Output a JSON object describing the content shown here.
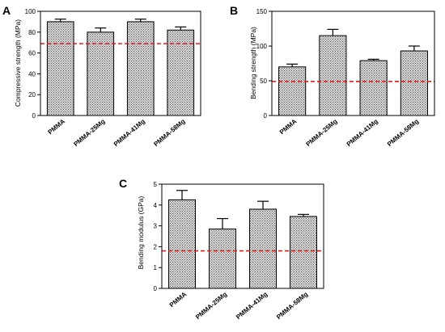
{
  "figure": {
    "fill_color": "#d8d8d8",
    "hatch_color": "#555555",
    "reference_line_color": "#e21b1b"
  },
  "chart_data": [
    {
      "panel": "A",
      "type": "bar",
      "categories": [
        "PMMA",
        "PMMA-25Mg",
        "PMMA-41Mg",
        "PMMA-58Mg"
      ],
      "values": [
        90,
        80,
        90,
        82
      ],
      "errors": [
        2.5,
        4,
        2.5,
        3
      ],
      "reference_line": 69,
      "ylabel": "Compressive strength (MPa)",
      "xlabel": "",
      "ylim": [
        0,
        100
      ],
      "yticks": [
        "0",
        "20",
        "40",
        "60",
        "80",
        "100"
      ]
    },
    {
      "panel": "B",
      "type": "bar",
      "categories": [
        "PMMA",
        "PMMA-25Mg",
        "PMMA-41Mg",
        "PMMA-58Mg"
      ],
      "values": [
        70,
        115,
        79,
        93
      ],
      "errors": [
        4,
        9,
        2,
        7
      ],
      "reference_line": 49,
      "ylabel": "Bending strength (MPa)",
      "xlabel": "",
      "ylim": [
        0,
        150
      ],
      "yticks": [
        "0",
        "50",
        "100",
        "150"
      ]
    },
    {
      "panel": "C",
      "type": "bar",
      "categories": [
        "PMMA",
        "PMMA-25Mg",
        "PMMA-41Mg",
        "PMMA-58Mg"
      ],
      "values": [
        4.25,
        2.85,
        3.8,
        3.45
      ],
      "errors": [
        0.45,
        0.5,
        0.38,
        0.1
      ],
      "reference_line": 1.8,
      "ylabel": "Bending modulus (GPa)",
      "xlabel": "",
      "ylim": [
        0,
        5
      ],
      "yticks": [
        "0",
        "1",
        "2",
        "3",
        "4",
        "5"
      ]
    }
  ]
}
